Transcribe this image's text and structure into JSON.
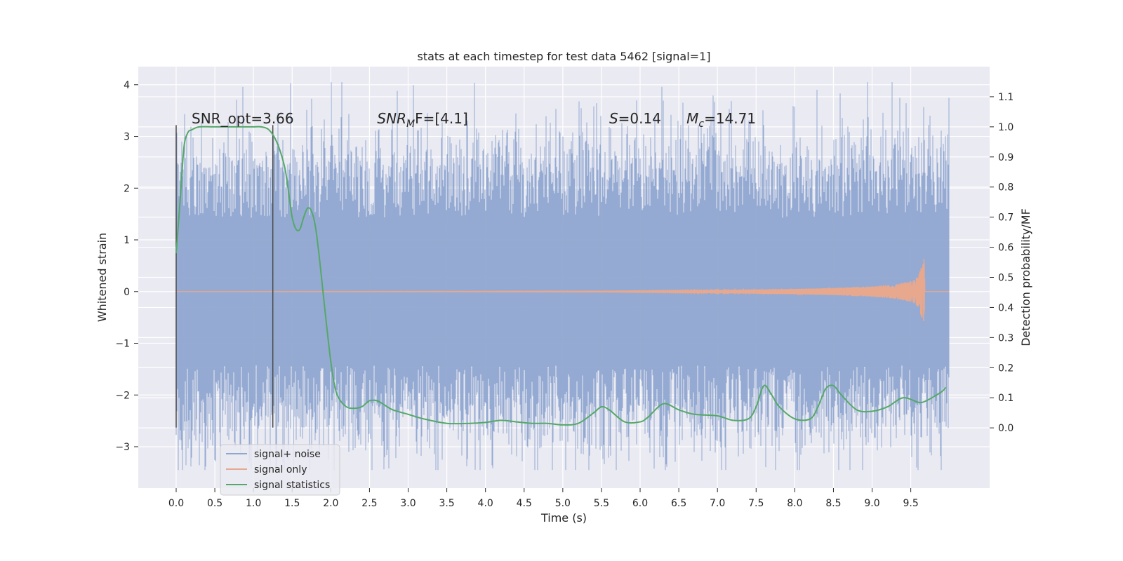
{
  "chart_data": {
    "type": "line",
    "title": "stats at each timestep for test data 5462 [signal=1]",
    "xlabel": "Time (s)",
    "ylabel": "Whitened strain",
    "y2label": "Detection probability/MF",
    "xlim": [
      -0.49,
      10.52
    ],
    "ylim": [
      -3.8,
      4.35
    ],
    "y2lim": [
      -0.2,
      1.2
    ],
    "x_ticks": [
      0.0,
      0.5,
      1.0,
      1.5,
      2.0,
      2.5,
      3.0,
      3.5,
      4.0,
      4.5,
      5.0,
      5.5,
      6.0,
      6.5,
      7.0,
      7.5,
      8.0,
      8.5,
      9.0,
      9.5
    ],
    "x_tick_labels": [
      "0.0",
      "0.5",
      "1.0",
      "1.5",
      "2.0",
      "2.5",
      "3.0",
      "3.5",
      "4.0",
      "4.5",
      "5.0",
      "5.5",
      "6.0",
      "6.5",
      "7.0",
      "7.5",
      "8.0",
      "8.5",
      "9.0",
      "9.5"
    ],
    "y_ticks": [
      -3,
      -2,
      -1,
      0,
      1,
      2,
      3,
      4
    ],
    "y_tick_labels": [
      "−3",
      "−2",
      "−1",
      "0",
      "1",
      "2",
      "3",
      "4"
    ],
    "y2_ticks": [
      0.0,
      0.1,
      0.2,
      0.3,
      0.4,
      0.5,
      0.6,
      0.7,
      0.8,
      0.9,
      1.0,
      1.1
    ],
    "y2_tick_labels": [
      "0.0",
      "0.1",
      "0.2",
      "0.3",
      "0.4",
      "0.5",
      "0.6",
      "0.7",
      "0.8",
      "0.9",
      "1.0",
      "1.1"
    ],
    "grid": true,
    "legend_position": "bottom-left",
    "colors": {
      "background": "#eaeaf2",
      "grid": "#ffffff",
      "noise": "#8fa6d0",
      "signal": "#e8a88e",
      "stats": "#55a868",
      "marker": "#4a4a4a"
    },
    "noise_band": {
      "x_range": [
        0.0,
        10.0
      ],
      "typical_range": [
        -1.5,
        1.5
      ],
      "frequent_peak_range": [
        -2.1,
        2.1
      ],
      "max": 4.05,
      "min": -3.45
    },
    "series": [
      {
        "name": "signal+ noise",
        "kind": "noise",
        "x_range": [
          0.0,
          10.0
        ]
      },
      {
        "name": "signal only",
        "kind": "chirp",
        "x": [
          0.0,
          5.5,
          6.5,
          7.5,
          8.0,
          8.5,
          9.0,
          9.3,
          9.5,
          9.6,
          9.65,
          9.68,
          9.7,
          10.0
        ],
        "amplitude": [
          0.0,
          0.01,
          0.02,
          0.04,
          0.05,
          0.07,
          0.1,
          0.14,
          0.2,
          0.3,
          0.55,
          0.72,
          0.0,
          0.0
        ]
      },
      {
        "name": "signal statistics",
        "axis": "right",
        "x": [
          0.0,
          0.05,
          0.1,
          0.15,
          0.2,
          0.3,
          0.5,
          0.7,
          0.9,
          1.0,
          1.1,
          1.2,
          1.3,
          1.4,
          1.45,
          1.5,
          1.55,
          1.6,
          1.65,
          1.7,
          1.75,
          1.8,
          1.85,
          1.9,
          1.95,
          2.0,
          2.05,
          2.1,
          2.2,
          2.3,
          2.4,
          2.5,
          2.6,
          2.7,
          2.8,
          3.0,
          3.2,
          3.5,
          3.8,
          4.0,
          4.2,
          4.4,
          4.6,
          4.8,
          5.0,
          5.2,
          5.4,
          5.5,
          5.6,
          5.8,
          6.0,
          6.1,
          6.3,
          6.5,
          6.7,
          7.0,
          7.2,
          7.4,
          7.5,
          7.6,
          7.7,
          7.8,
          8.0,
          8.2,
          8.3,
          8.4,
          8.5,
          8.6,
          8.8,
          9.0,
          9.2,
          9.4,
          9.6,
          9.7,
          9.9,
          9.95
        ],
        "y": [
          0.58,
          0.75,
          0.93,
          0.98,
          0.99,
          1.0,
          1.0,
          1.0,
          1.0,
          1.0,
          1.0,
          0.99,
          0.95,
          0.87,
          0.79,
          0.7,
          0.66,
          0.66,
          0.7,
          0.73,
          0.72,
          0.67,
          0.57,
          0.45,
          0.33,
          0.22,
          0.14,
          0.1,
          0.07,
          0.065,
          0.07,
          0.09,
          0.09,
          0.075,
          0.06,
          0.045,
          0.03,
          0.015,
          0.015,
          0.018,
          0.025,
          0.02,
          0.015,
          0.015,
          0.01,
          0.015,
          0.05,
          0.07,
          0.06,
          0.02,
          0.02,
          0.035,
          0.08,
          0.06,
          0.045,
          0.04,
          0.025,
          0.03,
          0.07,
          0.14,
          0.11,
          0.07,
          0.03,
          0.03,
          0.07,
          0.13,
          0.14,
          0.11,
          0.06,
          0.055,
          0.07,
          0.1,
          0.085,
          0.09,
          0.12,
          0.135
        ]
      }
    ],
    "marker_lines": [
      {
        "x": 0.0,
        "y_from": -2.63,
        "y_to": 3.22
      },
      {
        "x": 1.25,
        "y_from": -2.63,
        "y_to": 3.22
      }
    ],
    "annotations": [
      {
        "id": "snr_opt",
        "text": "SNR_opt=3.66",
        "x": 0.2,
        "y": 3.25
      },
      {
        "id": "snr_mf",
        "text_base": "SNR",
        "text_sub": "M",
        "text_tail": "F=[4.1]",
        "x": 2.6,
        "y": 3.25
      },
      {
        "id": "s_val",
        "text_base": "S",
        "text_tail": "=0.14",
        "x": 5.6,
        "y": 3.25
      },
      {
        "id": "mc_val",
        "text_base": "M",
        "text_sub": "c",
        "text_tail": "=14.71",
        "x": 6.6,
        "y": 3.25
      }
    ],
    "legend": [
      {
        "label": "signal+ noise",
        "color": "#8fa6d0"
      },
      {
        "label": "signal only",
        "color": "#e8a88e"
      },
      {
        "label": "signal statistics",
        "color": "#55a868"
      }
    ]
  }
}
